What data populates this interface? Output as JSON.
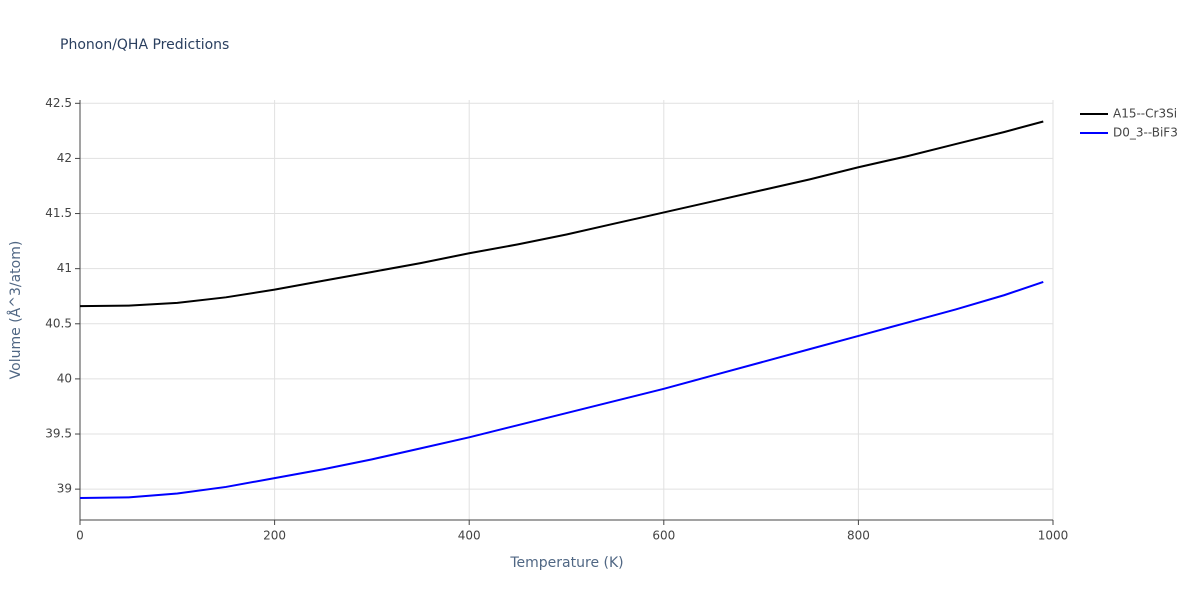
{
  "chart_data": {
    "type": "line",
    "title": "Phonon/QHA Predictions",
    "x_label": "Temperature (K)",
    "y_label": "Volume (Å^3/atom)",
    "x": [
      0,
      50,
      100,
      150,
      200,
      250,
      300,
      350,
      400,
      450,
      500,
      550,
      600,
      650,
      700,
      750,
      800,
      850,
      900,
      950,
      990
    ],
    "series": [
      {
        "name": "A15--Cr3Si",
        "color": "#000000",
        "values": [
          40.66,
          40.665,
          40.69,
          40.74,
          40.81,
          40.89,
          40.97,
          41.05,
          41.14,
          41.22,
          41.31,
          41.41,
          41.51,
          41.61,
          41.71,
          41.81,
          41.92,
          42.02,
          42.13,
          42.24,
          42.335
        ]
      },
      {
        "name": "D0_3--BiF3",
        "color": "#0000ff",
        "values": [
          38.92,
          38.925,
          38.96,
          39.02,
          39.1,
          39.18,
          39.27,
          39.37,
          39.47,
          39.58,
          39.69,
          39.8,
          39.91,
          40.03,
          40.15,
          40.27,
          40.39,
          40.51,
          40.63,
          40.76,
          40.88
        ]
      }
    ],
    "xlim": [
      0,
      1000
    ],
    "xticks": [
      0,
      200,
      400,
      600,
      800,
      1000
    ],
    "ylim": [
      38.72,
      42.53
    ],
    "yticks": [
      39,
      39.5,
      40,
      40.5,
      41,
      41.5,
      42,
      42.5
    ],
    "grid": true,
    "legend": "right"
  }
}
